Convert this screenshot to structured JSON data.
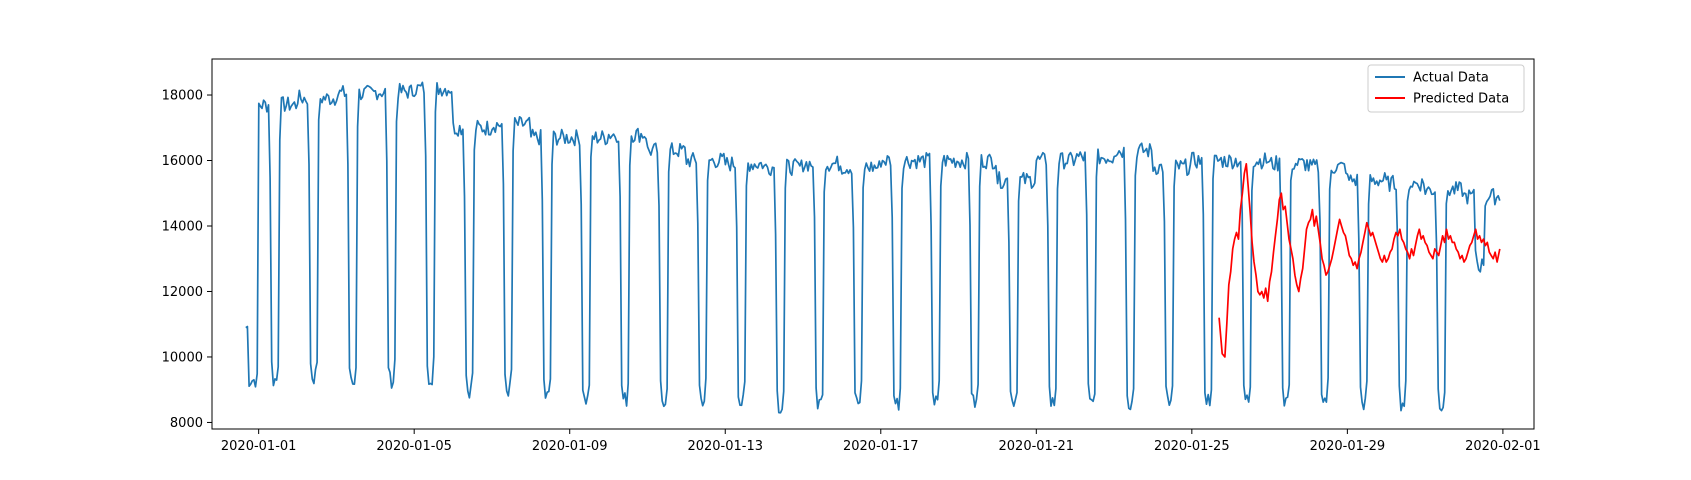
{
  "chart_data": {
    "type": "line",
    "title": "",
    "xlabel": "",
    "ylabel": "",
    "x_range_days": [
      -1.2,
      32.8
    ],
    "ylim": [
      7800,
      19100
    ],
    "grid": false,
    "legend_position": "top-right",
    "x_ticks": [
      {
        "day": 0,
        "label": "2020-01-01"
      },
      {
        "day": 4,
        "label": "2020-01-05"
      },
      {
        "day": 8,
        "label": "2020-01-09"
      },
      {
        "day": 12,
        "label": "2020-01-13"
      },
      {
        "day": 16,
        "label": "2020-01-17"
      },
      {
        "day": 20,
        "label": "2020-01-21"
      },
      {
        "day": 24,
        "label": "2020-01-25"
      },
      {
        "day": 28,
        "label": "2020-01-29"
      },
      {
        "day": 32,
        "label": "2020-02-01"
      }
    ],
    "y_ticks": [
      8000,
      10000,
      12000,
      14000,
      16000,
      18000
    ],
    "series": [
      {
        "name": "Actual Data",
        "color": "#1f77b4",
        "start_day": -0.33,
        "end_day": 31.92,
        "peak_by_day": [
          17700,
          17900,
          18050,
          18100,
          18200,
          17000,
          17100,
          16700,
          16700,
          16800,
          16300,
          16000,
          15900,
          15800,
          15900,
          15800,
          16000,
          16000,
          16000,
          15400,
          16000,
          16100,
          16300,
          15800,
          16000,
          16000,
          15900,
          15800,
          15400,
          15300,
          15100,
          14900
        ],
        "trough_by_day": [
          9300,
          9400,
          9200,
          9300,
          9400,
          9000,
          9000,
          8800,
          8700,
          8700,
          8700,
          8700,
          8600,
          8500,
          8600,
          8600,
          8600,
          8600,
          8600,
          8700,
          8600,
          8600,
          8600,
          8600,
          8700,
          8700,
          8700,
          8700,
          8600,
          8600,
          8600,
          12800
        ]
      },
      {
        "name": "Predicted Data",
        "color": "#ff0000",
        "start_day": 24.7,
        "end_day": 31.92,
        "points": [
          [
            24.7,
            11200
          ],
          [
            24.78,
            10100
          ],
          [
            24.85,
            10000
          ],
          [
            24.9,
            11000
          ],
          [
            24.95,
            12200
          ],
          [
            25.0,
            12600
          ],
          [
            25.05,
            13300
          ],
          [
            25.1,
            13600
          ],
          [
            25.15,
            13800
          ],
          [
            25.2,
            13600
          ],
          [
            25.25,
            14500
          ],
          [
            25.3,
            15000
          ],
          [
            25.35,
            15600
          ],
          [
            25.4,
            15900
          ],
          [
            25.45,
            15200
          ],
          [
            25.5,
            14400
          ],
          [
            25.55,
            13500
          ],
          [
            25.6,
            12900
          ],
          [
            25.65,
            12500
          ],
          [
            25.7,
            12000
          ],
          [
            25.75,
            11900
          ],
          [
            25.8,
            12000
          ],
          [
            25.85,
            11800
          ],
          [
            25.9,
            12100
          ],
          [
            25.95,
            11700
          ],
          [
            26.0,
            12300
          ],
          [
            26.05,
            12600
          ],
          [
            26.1,
            13200
          ],
          [
            26.15,
            13700
          ],
          [
            26.2,
            14200
          ],
          [
            26.25,
            14800
          ],
          [
            26.3,
            15000
          ],
          [
            26.35,
            14500
          ],
          [
            26.4,
            14600
          ],
          [
            26.45,
            14100
          ],
          [
            26.5,
            13600
          ],
          [
            26.55,
            13300
          ],
          [
            26.6,
            13000
          ],
          [
            26.65,
            12500
          ],
          [
            26.7,
            12200
          ],
          [
            26.75,
            12000
          ],
          [
            26.8,
            12400
          ],
          [
            26.85,
            12700
          ],
          [
            26.9,
            13300
          ],
          [
            26.95,
            13900
          ],
          [
            27.0,
            14100
          ],
          [
            27.05,
            14200
          ],
          [
            27.1,
            14500
          ],
          [
            27.15,
            14000
          ],
          [
            27.2,
            14300
          ],
          [
            27.25,
            13900
          ],
          [
            27.3,
            13500
          ],
          [
            27.35,
            13000
          ],
          [
            27.4,
            12800
          ],
          [
            27.45,
            12500
          ],
          [
            27.5,
            12600
          ],
          [
            27.55,
            12800
          ],
          [
            27.6,
            13000
          ],
          [
            27.65,
            13300
          ],
          [
            27.7,
            13600
          ],
          [
            27.75,
            13900
          ],
          [
            27.8,
            14200
          ],
          [
            27.85,
            14000
          ],
          [
            27.9,
            13800
          ],
          [
            27.95,
            13700
          ],
          [
            28.0,
            13400
          ],
          [
            28.05,
            13100
          ],
          [
            28.1,
            13000
          ],
          [
            28.15,
            12800
          ],
          [
            28.2,
            12900
          ],
          [
            28.25,
            12700
          ],
          [
            28.3,
            13000
          ],
          [
            28.35,
            13200
          ],
          [
            28.4,
            13500
          ],
          [
            28.45,
            13800
          ],
          [
            28.5,
            14100
          ],
          [
            28.55,
            13900
          ],
          [
            28.6,
            13700
          ],
          [
            28.65,
            13800
          ],
          [
            28.7,
            13600
          ],
          [
            28.75,
            13400
          ],
          [
            28.8,
            13200
          ],
          [
            28.85,
            13000
          ],
          [
            28.9,
            12900
          ],
          [
            28.95,
            13100
          ],
          [
            29.0,
            12900
          ],
          [
            29.05,
            13000
          ],
          [
            29.1,
            13200
          ],
          [
            29.15,
            13300
          ],
          [
            29.2,
            13600
          ],
          [
            29.25,
            13800
          ],
          [
            29.3,
            13700
          ],
          [
            29.35,
            13900
          ],
          [
            29.4,
            13600
          ],
          [
            29.45,
            13500
          ],
          [
            29.5,
            13300
          ],
          [
            29.55,
            13200
          ],
          [
            29.6,
            13000
          ],
          [
            29.65,
            13300
          ],
          [
            29.7,
            13100
          ],
          [
            29.75,
            13400
          ],
          [
            29.8,
            13700
          ],
          [
            29.85,
            13900
          ],
          [
            29.9,
            13600
          ],
          [
            29.95,
            13700
          ],
          [
            30.0,
            13500
          ],
          [
            30.05,
            13400
          ],
          [
            30.1,
            13200
          ],
          [
            30.15,
            13100
          ],
          [
            30.2,
            13000
          ],
          [
            30.25,
            13300
          ],
          [
            30.3,
            13200
          ],
          [
            30.35,
            13100
          ],
          [
            30.4,
            13400
          ],
          [
            30.45,
            13700
          ],
          [
            30.5,
            13500
          ],
          [
            30.55,
            13900
          ],
          [
            30.6,
            13600
          ],
          [
            30.65,
            13700
          ],
          [
            30.7,
            13500
          ],
          [
            30.75,
            13500
          ],
          [
            30.8,
            13300
          ],
          [
            30.85,
            13200
          ],
          [
            30.9,
            13000
          ],
          [
            30.95,
            13100
          ],
          [
            31.0,
            12900
          ],
          [
            31.05,
            13000
          ],
          [
            31.1,
            13200
          ],
          [
            31.15,
            13400
          ],
          [
            31.2,
            13500
          ],
          [
            31.25,
            13700
          ],
          [
            31.3,
            13900
          ],
          [
            31.35,
            13600
          ],
          [
            31.4,
            13700
          ],
          [
            31.45,
            13500
          ],
          [
            31.5,
            13600
          ],
          [
            31.55,
            13400
          ],
          [
            31.6,
            13500
          ],
          [
            31.65,
            13200
          ],
          [
            31.7,
            13100
          ],
          [
            31.75,
            13000
          ],
          [
            31.8,
            13200
          ],
          [
            31.85,
            12900
          ],
          [
            31.92,
            13300
          ]
        ]
      }
    ]
  }
}
